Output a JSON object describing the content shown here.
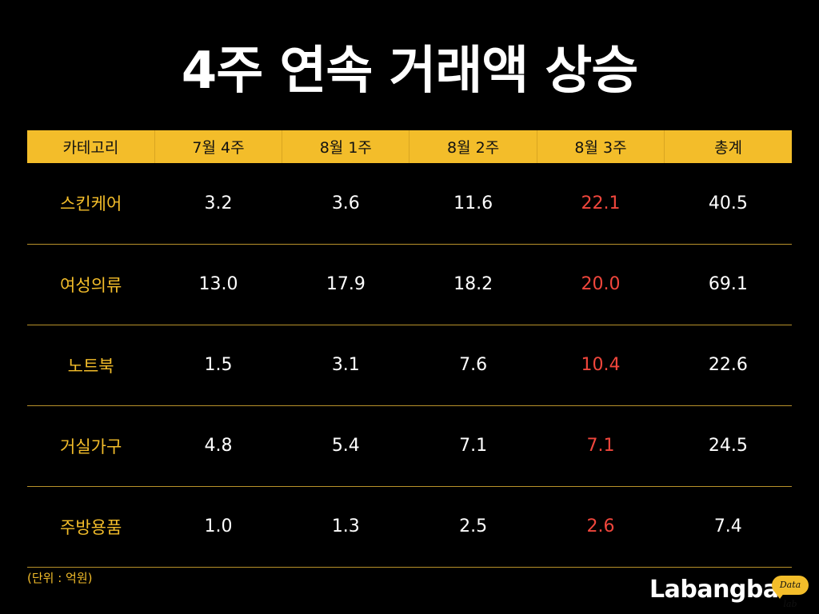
{
  "title": "4주 연속 거래액 상승",
  "unit_note": "(단위 : 억원)",
  "logo": {
    "word": "Labangba",
    "badge": "Data lab"
  },
  "colors": {
    "background": "#000000",
    "accent": "#f3bd2a",
    "highlight": "#f0463c",
    "text": "#ffffff"
  },
  "chart_data": {
    "type": "table",
    "title": "4주 연속 거래액 상승",
    "columns": [
      "카테고리",
      "7월 4주",
      "8월 1주",
      "8월 2주",
      "8월 3주",
      "총계"
    ],
    "highlight_column": "8월 3주",
    "unit": "(단위 : 억원)",
    "rows": [
      {
        "category": "스킨케어",
        "values": [
          "3.2",
          "3.6",
          "11.6",
          "22.1",
          "40.5"
        ]
      },
      {
        "category": "여성의류",
        "values": [
          "13.0",
          "17.9",
          "18.2",
          "20.0",
          "69.1"
        ]
      },
      {
        "category": "노트북",
        "values": [
          "1.5",
          "3.1",
          "7.6",
          "10.4",
          "22.6"
        ]
      },
      {
        "category": "거실가구",
        "values": [
          "4.8",
          "5.4",
          "7.1",
          "7.1",
          "24.5"
        ]
      },
      {
        "category": "주방용품",
        "values": [
          "1.0",
          "1.3",
          "2.5",
          "2.6",
          "7.4"
        ]
      }
    ]
  }
}
